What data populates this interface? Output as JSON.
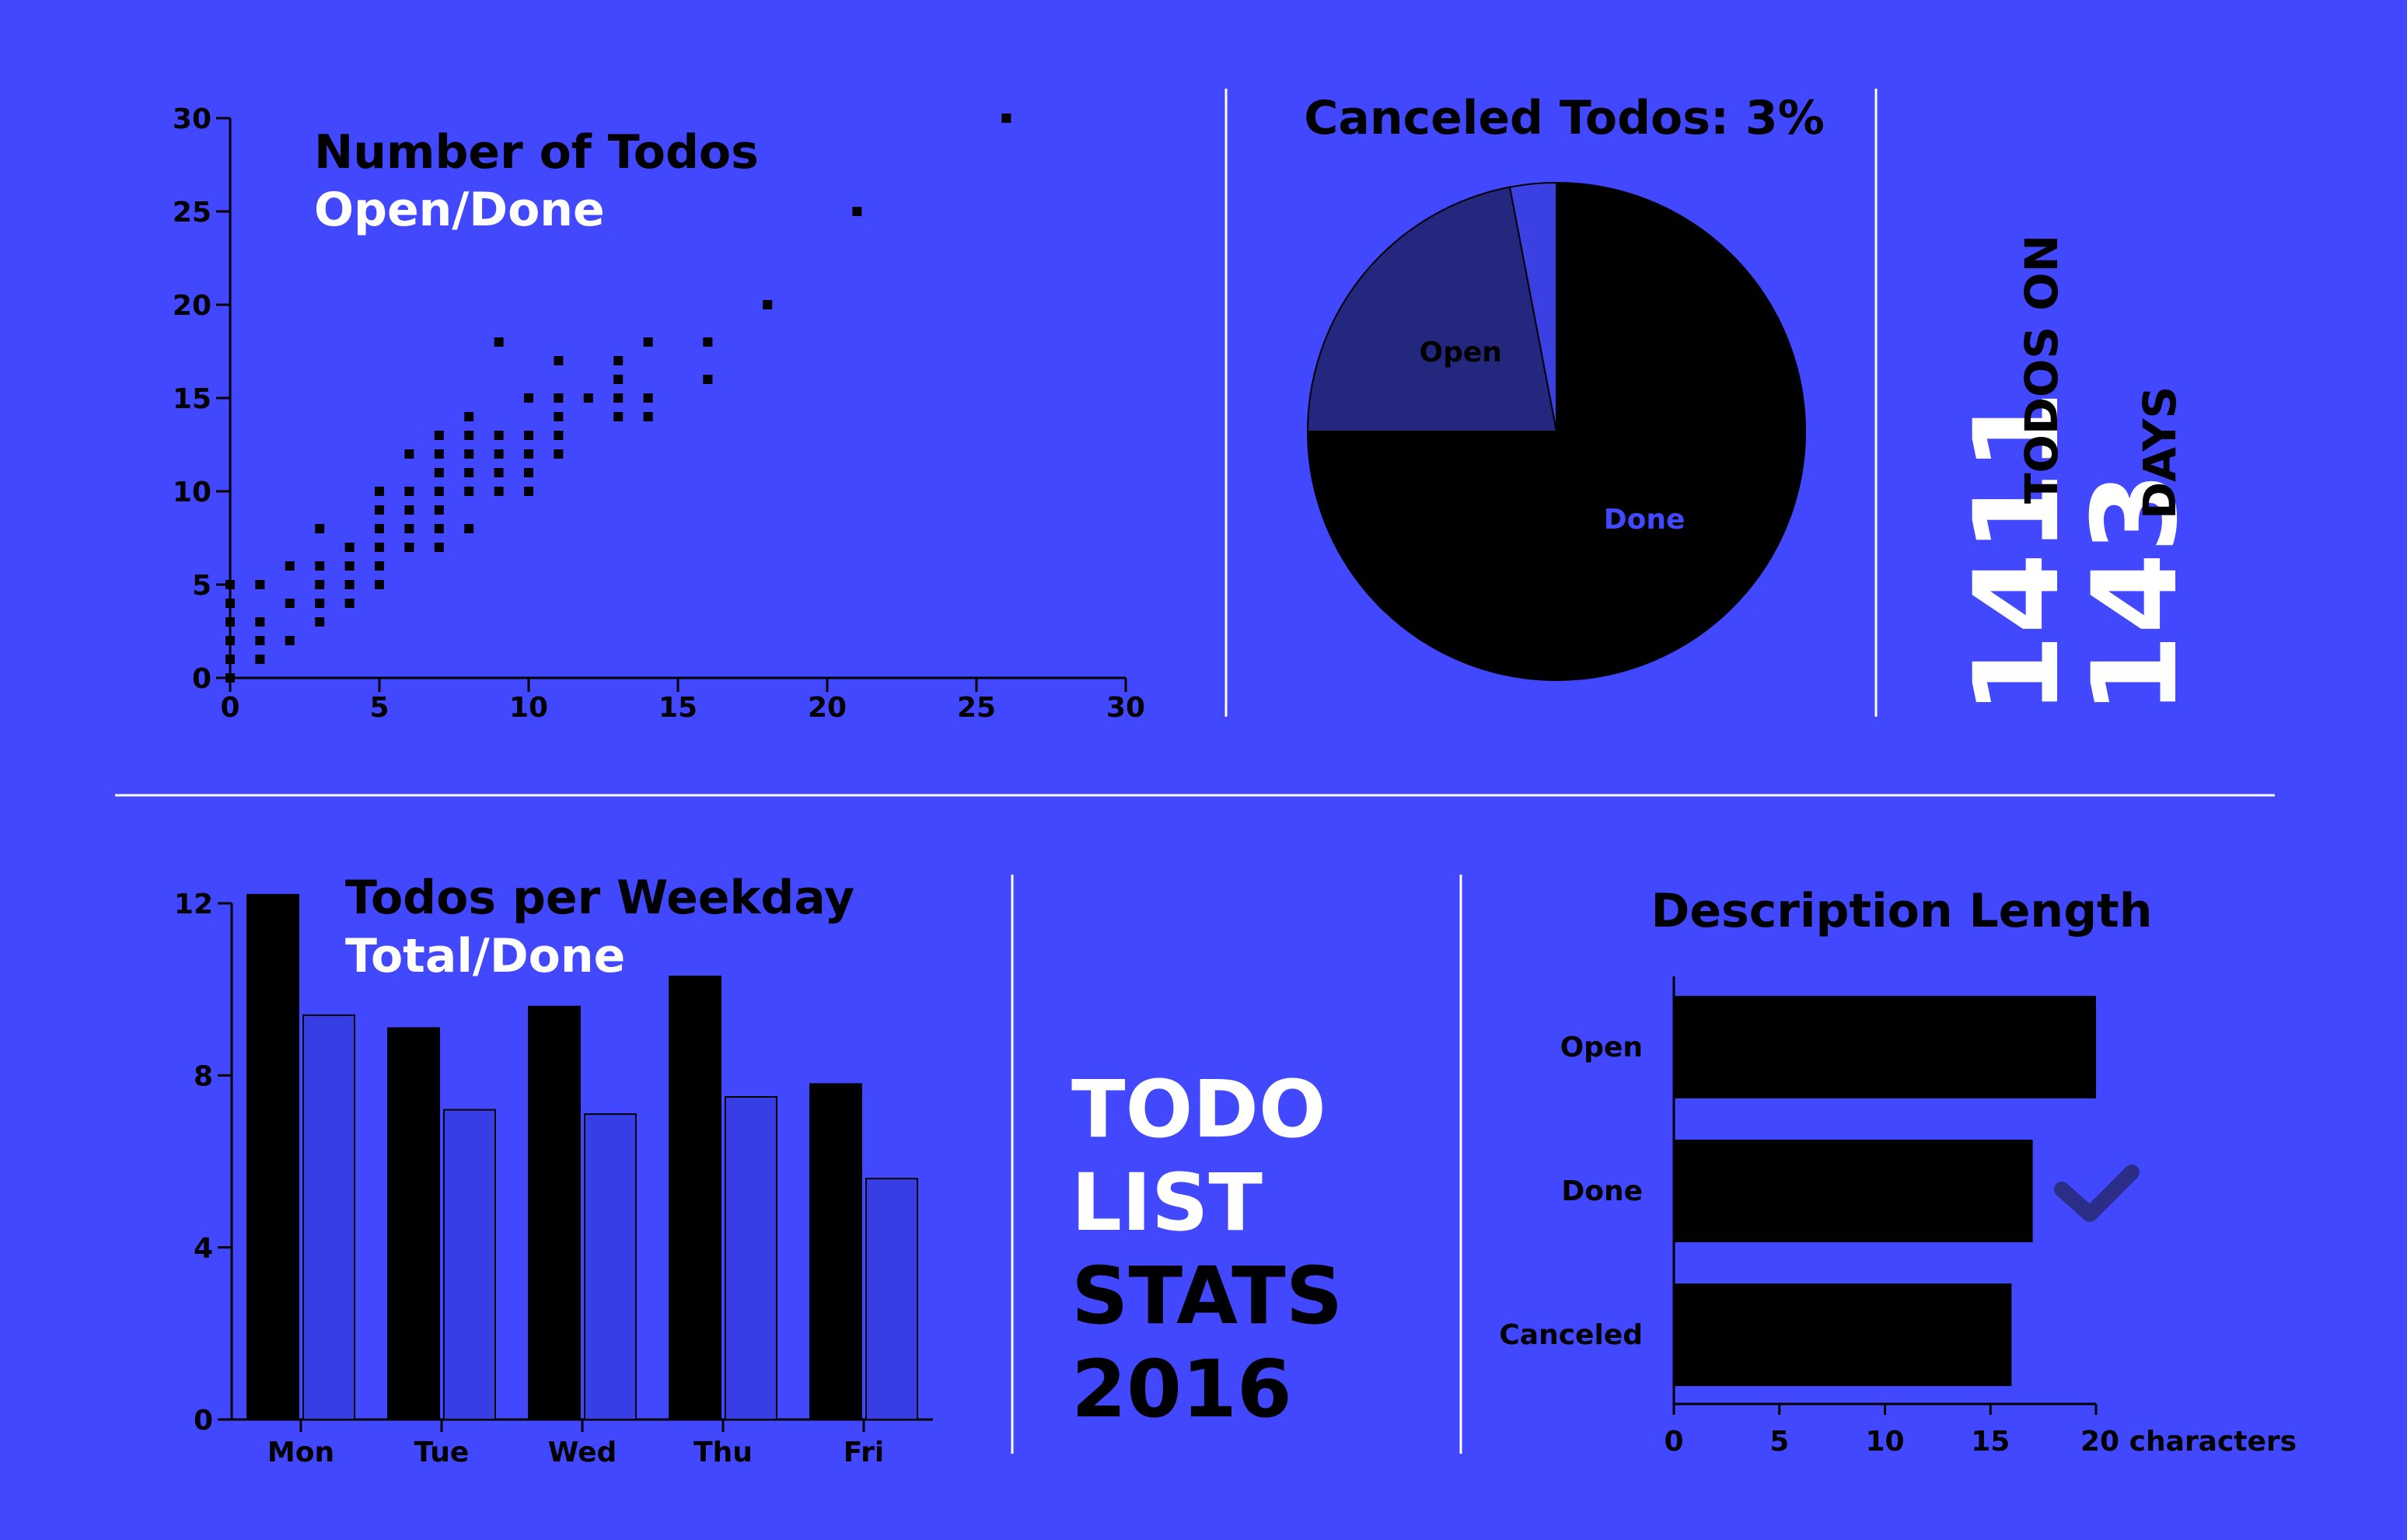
{
  "colors": {
    "background": "#4148fd",
    "black": "#000000",
    "white": "#ffffff",
    "open": "#23287e",
    "done_bar": "#373ee6",
    "canceled": "#3a40e2",
    "checkmark": "#2a2e87"
  },
  "headline": {
    "lines": [
      "TODO",
      "LIST",
      "STATS",
      "2016"
    ]
  },
  "summary": {
    "todos_count": "1411",
    "todos_label": "TODOS ON",
    "days_count": "143",
    "days_label": "DAYS"
  },
  "icons": {
    "done_marker": "checkmark-icon"
  },
  "chart_data": [
    {
      "id": "scatter",
      "type": "scatter",
      "title": "Number of Todos",
      "subtitle": "Open/Done",
      "xlim": [
        0,
        30
      ],
      "ylim": [
        0,
        30
      ],
      "xticks": [
        0,
        5,
        10,
        15,
        20,
        25,
        30
      ],
      "yticks": [
        0,
        5,
        10,
        15,
        20,
        25,
        30
      ],
      "grid": false,
      "points": [
        [
          0,
          0
        ],
        [
          0,
          1
        ],
        [
          0,
          2
        ],
        [
          0,
          3
        ],
        [
          0,
          4
        ],
        [
          0,
          5
        ],
        [
          1,
          1
        ],
        [
          1,
          2
        ],
        [
          1,
          3
        ],
        [
          1,
          5
        ],
        [
          2,
          2
        ],
        [
          2,
          4
        ],
        [
          2,
          6
        ],
        [
          3,
          3
        ],
        [
          3,
          4
        ],
        [
          3,
          5
        ],
        [
          3,
          6
        ],
        [
          3,
          8
        ],
        [
          4,
          4
        ],
        [
          4,
          5
        ],
        [
          4,
          6
        ],
        [
          4,
          7
        ],
        [
          5,
          5
        ],
        [
          5,
          6
        ],
        [
          5,
          7
        ],
        [
          5,
          8
        ],
        [
          5,
          9
        ],
        [
          5,
          10
        ],
        [
          6,
          7
        ],
        [
          6,
          8
        ],
        [
          6,
          9
        ],
        [
          6,
          10
        ],
        [
          6,
          12
        ],
        [
          7,
          7
        ],
        [
          7,
          8
        ],
        [
          7,
          9
        ],
        [
          7,
          10
        ],
        [
          7,
          11
        ],
        [
          7,
          12
        ],
        [
          7,
          13
        ],
        [
          8,
          8
        ],
        [
          8,
          10
        ],
        [
          8,
          11
        ],
        [
          8,
          12
        ],
        [
          8,
          13
        ],
        [
          8,
          14
        ],
        [
          9,
          10
        ],
        [
          9,
          11
        ],
        [
          9,
          12
        ],
        [
          9,
          13
        ],
        [
          9,
          18
        ],
        [
          10,
          10
        ],
        [
          10,
          11
        ],
        [
          10,
          12
        ],
        [
          10,
          13
        ],
        [
          10,
          15
        ],
        [
          11,
          12
        ],
        [
          11,
          13
        ],
        [
          11,
          14
        ],
        [
          11,
          15
        ],
        [
          11,
          17
        ],
        [
          12,
          15
        ],
        [
          13,
          14
        ],
        [
          13,
          15
        ],
        [
          13,
          16
        ],
        [
          13,
          17
        ],
        [
          14,
          14
        ],
        [
          14,
          15
        ],
        [
          14,
          18
        ],
        [
          16,
          16
        ],
        [
          16,
          18
        ],
        [
          18,
          20
        ],
        [
          21,
          25
        ],
        [
          26,
          30
        ]
      ]
    },
    {
      "id": "pie",
      "type": "pie",
      "title": "Canceled Todos: 3%",
      "slices": [
        {
          "label": "Done",
          "value": 75,
          "color": "#000000",
          "label_color": "#4148fd"
        },
        {
          "label": "Open",
          "value": 22,
          "color": "#23287e",
          "label_color": "#000000"
        },
        {
          "label": "",
          "value": 3,
          "color": "#3a40e2",
          "label_color": "#000000"
        }
      ]
    },
    {
      "id": "weekday",
      "type": "bar",
      "title": "Todos per Weekday",
      "subtitle": "Total/Done",
      "categories": [
        "Mon",
        "Tue",
        "Wed",
        "Thu",
        "Fri"
      ],
      "ylim": [
        0,
        12
      ],
      "yticks": [
        0,
        4,
        8,
        12
      ],
      "series": [
        {
          "name": "Total",
          "values": [
            12.2,
            9.1,
            9.6,
            10.3,
            7.8
          ],
          "color": "#000000"
        },
        {
          "name": "Done",
          "values": [
            9.4,
            7.2,
            7.1,
            7.5,
            5.6
          ],
          "color": "#373ee6"
        }
      ]
    },
    {
      "id": "description",
      "type": "bar",
      "orientation": "horizontal",
      "title": "Description Length",
      "categories": [
        "Open",
        "Done",
        "Canceled"
      ],
      "values": [
        20,
        17,
        16
      ],
      "xlim": [
        0,
        20
      ],
      "xticks": [
        "0",
        "5",
        "10",
        "15",
        "20 characters"
      ]
    }
  ]
}
